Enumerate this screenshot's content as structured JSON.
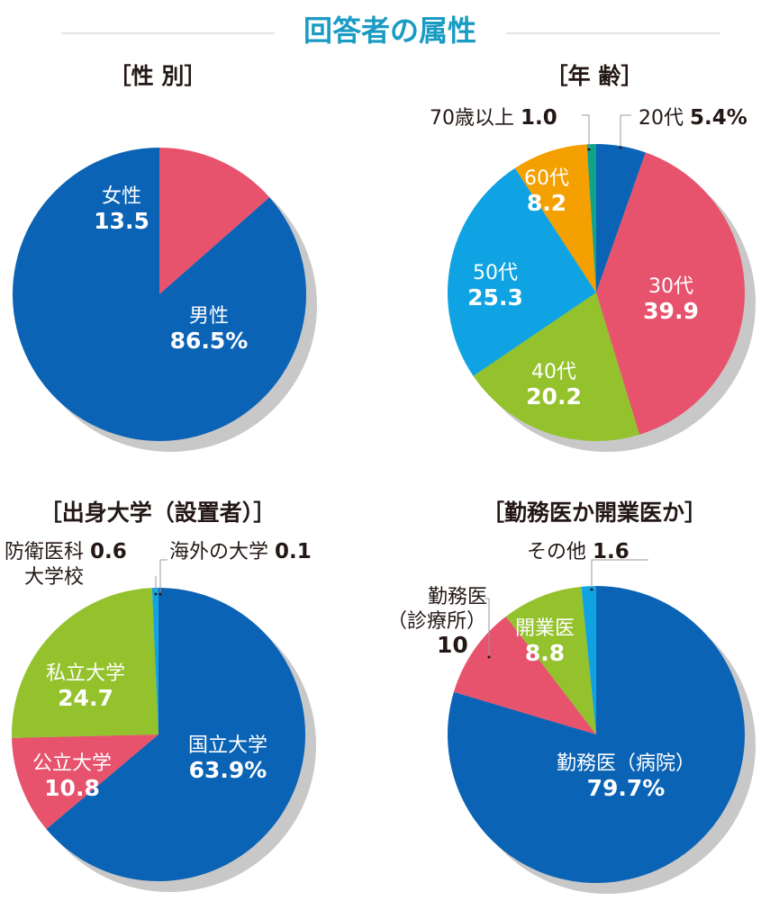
{
  "page": {
    "title": "回答者の属性",
    "title_color": "#1a9bc4"
  },
  "colors": {
    "blue": "#0b63b5",
    "pink": "#e7536d",
    "green": "#94c22d",
    "skyblue": "#0fa3e3",
    "orange": "#f3a000",
    "teal": "#10a38a",
    "shadow": "#c8c8c8",
    "text": "#231815",
    "white": "#ffffff"
  },
  "chart_data": [
    {
      "type": "pie",
      "title": "［性 別］",
      "slices": [
        {
          "name": "女性",
          "value": 13.5,
          "display": "13.5",
          "color": "pink"
        },
        {
          "name": "男性",
          "value": 86.5,
          "display": "86.5%",
          "color": "blue"
        }
      ]
    },
    {
      "type": "pie",
      "title": "［年 齢］",
      "slices": [
        {
          "name": "20代",
          "value": 5.4,
          "display": "5.4%",
          "color": "blue"
        },
        {
          "name": "30代",
          "value": 39.9,
          "display": "39.9",
          "color": "pink"
        },
        {
          "name": "40代",
          "value": 20.2,
          "display": "20.2",
          "color": "green"
        },
        {
          "name": "50代",
          "value": 25.3,
          "display": "25.3",
          "color": "skyblue"
        },
        {
          "name": "60代",
          "value": 8.2,
          "display": "8.2",
          "color": "orange"
        },
        {
          "name": "70歳以上",
          "value": 1.0,
          "display": "1.0",
          "color": "teal"
        }
      ]
    },
    {
      "type": "pie",
      "title": "［出身大学（設置者）］",
      "slices": [
        {
          "name": "国立大学",
          "value": 63.9,
          "display": "63.9%",
          "color": "blue"
        },
        {
          "name": "公立大学",
          "value": 10.8,
          "display": "10.8",
          "color": "pink"
        },
        {
          "name": "私立大学",
          "value": 24.7,
          "display": "24.7",
          "color": "green"
        },
        {
          "name": "防衛医科\n大学校",
          "value": 0.6,
          "display": "0.6",
          "color": "skyblue"
        },
        {
          "name": "海外の大学",
          "value": 0.1,
          "display": "0.1",
          "color": "skyblue"
        }
      ]
    },
    {
      "type": "pie",
      "title": "［勤務医か開業医か］",
      "slices": [
        {
          "name": "勤務医（病院）",
          "value": 79.7,
          "display": "79.7%",
          "color": "blue"
        },
        {
          "name": "勤務医\n（診療所）",
          "value": 10,
          "display": "10",
          "color": "pink"
        },
        {
          "name": "開業医",
          "value": 8.8,
          "display": "8.8",
          "color": "green"
        },
        {
          "name": "その他",
          "value": 1.6,
          "display": "1.6",
          "color": "skyblue"
        }
      ]
    }
  ]
}
